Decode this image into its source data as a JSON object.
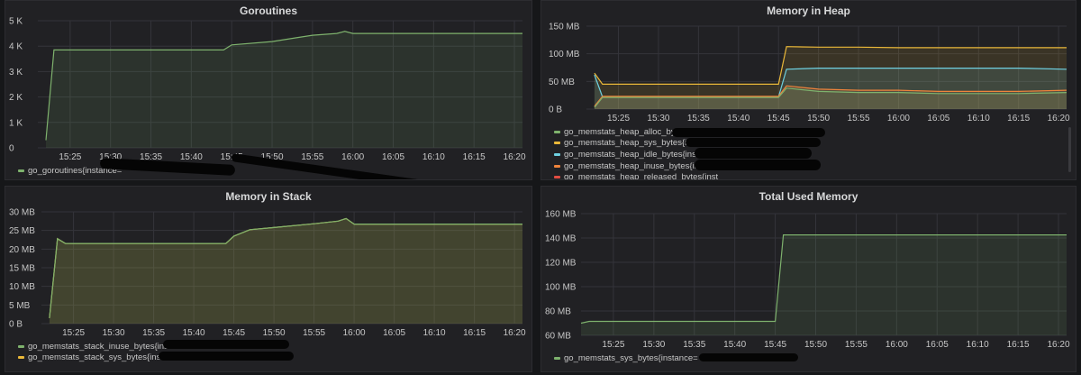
{
  "panels": {
    "goroutines": {
      "title": "Goroutines",
      "legend": [
        {
          "label": "go_goroutines{instance=",
          "color": "#7eb26d"
        }
      ]
    },
    "heap": {
      "title": "Memory in Heap",
      "legend": [
        {
          "label": "go_memstats_heap_alloc_bytes{inst",
          "color": "#7eb26d"
        },
        {
          "label": "go_memstats_heap_sys_bytes{instan",
          "color": "#eab839"
        },
        {
          "label": "go_memstats_heap_idle_bytes{instance=",
          "color": "#6ed0e0"
        },
        {
          "label": "go_memstats_heap_inuse_bytes{instanc",
          "color": "#ef843c"
        },
        {
          "label": "go_memstats_heap_released_bytes{inst",
          "color": "#e24d42"
        }
      ]
    },
    "stack": {
      "title": "Memory in Stack",
      "legend": [
        {
          "label": "go_memstats_stack_inuse_bytes{instance",
          "color": "#7eb26d"
        },
        {
          "label": "go_memstats_stack_sys_bytes{instance=\"",
          "color": "#eab839"
        }
      ]
    },
    "total": {
      "title": "Total Used Memory",
      "legend": [
        {
          "label": "go_memstats_sys_bytes{instance=",
          "color": "#7eb26d"
        }
      ]
    }
  },
  "chart_data": [
    {
      "type": "line",
      "title": "Goroutines",
      "x": [
        "15:22",
        "15:23",
        "15:25",
        "15:30",
        "15:35",
        "15:40",
        "15:44",
        "15:45",
        "15:50",
        "15:53",
        "15:55",
        "15:58",
        "15:59",
        "16:00",
        "16:05",
        "16:10",
        "16:15",
        "16:21"
      ],
      "x_ticks": [
        "15:25",
        "15:30",
        "15:35",
        "15:40",
        "15:45",
        "15:50",
        "15:55",
        "16:00",
        "16:05",
        "16:10",
        "16:15",
        "16:20"
      ],
      "y_ticks": [
        "0",
        "1 K",
        "2 K",
        "3 K",
        "4 K",
        "5 K"
      ],
      "ylim": [
        0,
        5000
      ],
      "grid": true,
      "fill": true,
      "series": [
        {
          "name": "go_goroutines{instance=",
          "color": "#7eb26d",
          "values": [
            300,
            3850,
            3850,
            3850,
            3850,
            3850,
            3850,
            4050,
            4180,
            4330,
            4430,
            4500,
            4580,
            4500,
            4500,
            4500,
            4500,
            4500
          ]
        }
      ]
    },
    {
      "type": "line",
      "title": "Memory in Heap",
      "x": [
        "15:22",
        "15:23",
        "15:25",
        "15:30",
        "15:35",
        "15:40",
        "15:45",
        "15:46",
        "15:50",
        "15:55",
        "16:00",
        "16:05",
        "16:10",
        "16:15",
        "16:21"
      ],
      "x_ticks": [
        "15:25",
        "15:30",
        "15:35",
        "15:40",
        "15:45",
        "15:50",
        "15:55",
        "16:00",
        "16:05",
        "16:10",
        "16:15",
        "16:20"
      ],
      "y_ticks": [
        "0 B",
        "50 MB",
        "100 MB",
        "150 MB"
      ],
      "ylim": [
        0,
        150
      ],
      "grid": true,
      "fill": true,
      "series": [
        {
          "name": "go_memstats_heap_sys_bytes{instan",
          "color": "#eab839",
          "values": [
            65,
            45,
            45,
            45,
            45,
            45,
            45,
            113,
            112,
            112,
            111,
            111,
            111,
            111,
            111
          ]
        },
        {
          "name": "go_memstats_heap_idle_bytes{instance=",
          "color": "#6ed0e0",
          "values": [
            62,
            22,
            22,
            22,
            22,
            22,
            22,
            72,
            74,
            74,
            74,
            74,
            74,
            74,
            72
          ]
        },
        {
          "name": "go_memstats_heap_inuse_bytes{instanc",
          "color": "#ef843c",
          "values": [
            5,
            23,
            23,
            23,
            23,
            23,
            23,
            42,
            36,
            34,
            34,
            32,
            32,
            32,
            34
          ]
        },
        {
          "name": "go_memstats_heap_alloc_bytes{inst",
          "color": "#7eb26d",
          "values": [
            3,
            21,
            21,
            21,
            21,
            21,
            21,
            38,
            32,
            30,
            30,
            28,
            28,
            28,
            30
          ]
        }
      ]
    },
    {
      "type": "line",
      "title": "Memory in Stack",
      "x": [
        "15:22",
        "15:23",
        "15:24",
        "15:25",
        "15:30",
        "15:35",
        "15:40",
        "15:44",
        "15:45",
        "15:47",
        "15:50",
        "15:55",
        "15:58",
        "15:59",
        "16:00",
        "16:05",
        "16:10",
        "16:15",
        "16:21"
      ],
      "x_ticks": [
        "15:25",
        "15:30",
        "15:35",
        "15:40",
        "15:45",
        "15:50",
        "15:55",
        "16:00",
        "16:05",
        "16:10",
        "16:15",
        "16:20"
      ],
      "y_ticks": [
        "0 B",
        "5 MB",
        "10 MB",
        "15 MB",
        "20 MB",
        "25 MB",
        "30 MB"
      ],
      "ylim": [
        0,
        30
      ],
      "grid": true,
      "fill": true,
      "series": [
        {
          "name": "go_memstats_stack_sys_bytes{instance=\"",
          "color": "#eab839",
          "values": [
            1.5,
            22.8,
            21.5,
            21.5,
            21.5,
            21.5,
            21.5,
            21.5,
            23.5,
            25.2,
            25.8,
            26.8,
            27.5,
            28.2,
            26.7,
            26.7,
            26.7,
            26.7,
            26.7
          ]
        },
        {
          "name": "go_memstats_stack_inuse_bytes{instance",
          "color": "#7eb26d",
          "values": [
            1.5,
            22.8,
            21.5,
            21.5,
            21.5,
            21.5,
            21.5,
            21.5,
            23.5,
            25.2,
            25.8,
            26.8,
            27.5,
            28.2,
            26.7,
            26.7,
            26.7,
            26.7,
            26.7
          ]
        }
      ]
    },
    {
      "type": "line",
      "title": "Total Used Memory",
      "x": [
        "15:21",
        "15:22",
        "15:25",
        "15:30",
        "15:35",
        "15:40",
        "15:45",
        "15:46",
        "15:50",
        "16:00",
        "16:10",
        "16:21"
      ],
      "x_ticks": [
        "15:25",
        "15:30",
        "15:35",
        "15:40",
        "15:45",
        "15:50",
        "15:55",
        "16:00",
        "16:05",
        "16:10",
        "16:15",
        "16:20"
      ],
      "y_ticks": [
        "60 MB",
        "80 MB",
        "100 MB",
        "120 MB",
        "140 MB",
        "160 MB"
      ],
      "ylim": [
        60,
        160
      ],
      "grid": true,
      "fill": true,
      "series": [
        {
          "name": "go_memstats_sys_bytes{instance=",
          "color": "#7eb26d",
          "values": [
            70,
            71.5,
            71.5,
            71.5,
            71.5,
            71.5,
            71.5,
            142.5,
            142.5,
            142.5,
            142.5,
            142.5
          ]
        }
      ]
    }
  ]
}
